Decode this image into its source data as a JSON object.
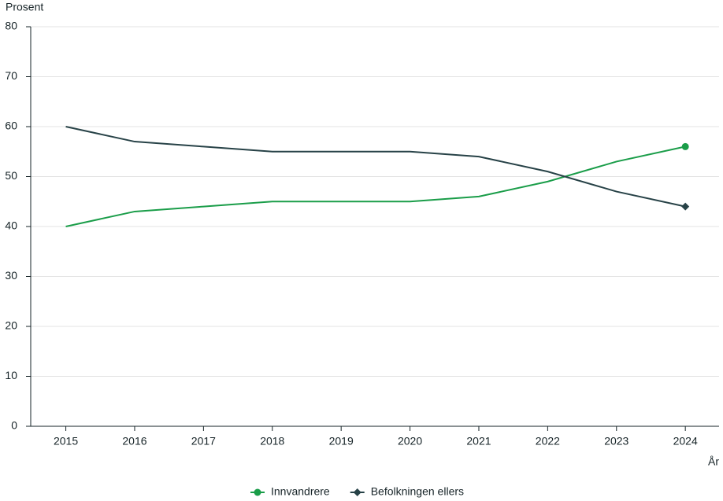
{
  "chart_data": {
    "type": "line",
    "y_label": "Prosent",
    "x_label": "År",
    "x": [
      2015,
      2016,
      2017,
      2018,
      2019,
      2020,
      2021,
      2022,
      2023,
      2024
    ],
    "series": [
      {
        "name": "Innvandrere",
        "color": "#1a9d49",
        "marker": "circle",
        "values": [
          40,
          43,
          44,
          45,
          45,
          45,
          46,
          49,
          53,
          56
        ]
      },
      {
        "name": "Befolkningen ellers",
        "color": "#274247",
        "marker": "diamond",
        "values": [
          60,
          57,
          56,
          55,
          55,
          55,
          54,
          51,
          47,
          44
        ]
      }
    ],
    "xlim": [
      2014.49,
      2024.49
    ],
    "xticks": [
      2015,
      2016,
      2017,
      2018,
      2019,
      2020,
      2021,
      2022,
      2023,
      2024
    ],
    "ylim": [
      0,
      80
    ],
    "yticks": [
      0,
      10,
      20,
      30,
      40,
      50,
      60,
      70,
      80
    ],
    "grid": true
  }
}
